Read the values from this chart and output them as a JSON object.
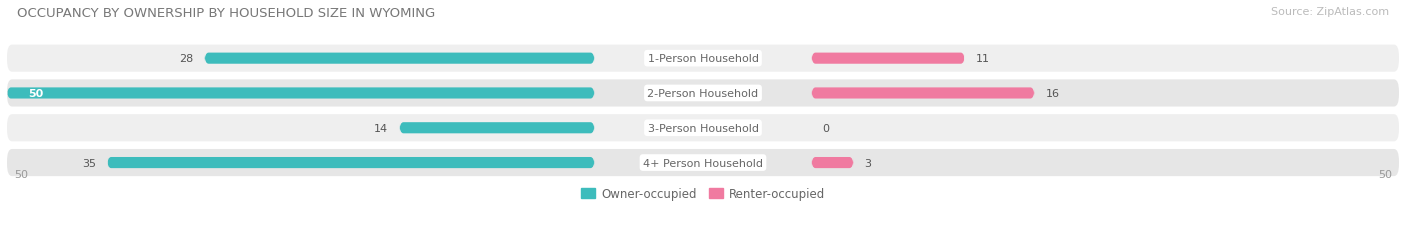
{
  "title": "OCCUPANCY BY OWNERSHIP BY HOUSEHOLD SIZE IN WYOMING",
  "source": "Source: ZipAtlas.com",
  "categories": [
    "1-Person Household",
    "2-Person Household",
    "3-Person Household",
    "4+ Person Household"
  ],
  "owner_values": [
    28,
    50,
    14,
    35
  ],
  "renter_values": [
    11,
    16,
    0,
    3
  ],
  "owner_color": "#3DBCBC",
  "renter_color": "#F07AA0",
  "row_bg_color_odd": "#EFEFEF",
  "row_bg_color_even": "#E6E6E6",
  "label_bg_color": "#FFFFFF",
  "x_max": 50,
  "title_fontsize": 9.5,
  "source_fontsize": 8,
  "bar_label_fontsize": 8,
  "category_fontsize": 8,
  "legend_fontsize": 8.5,
  "axis_tick_fontsize": 8
}
